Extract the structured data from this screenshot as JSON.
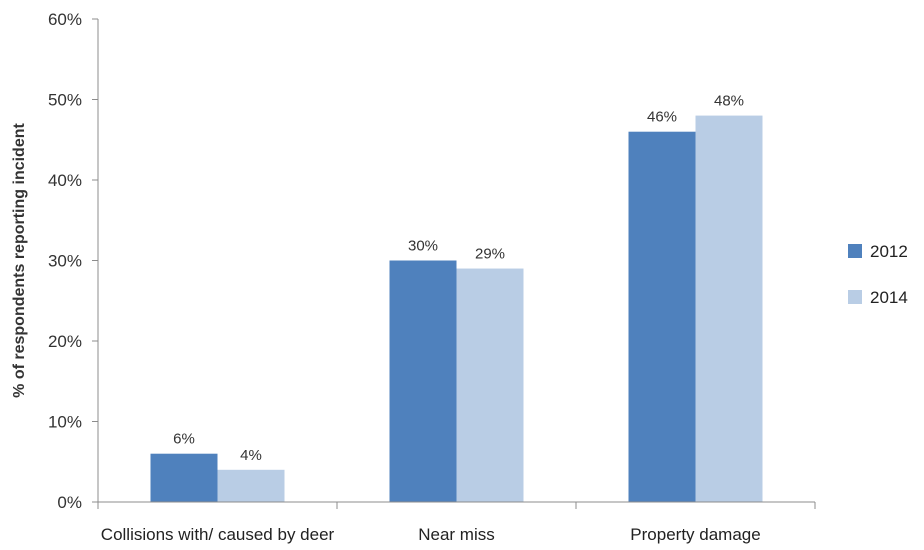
{
  "chart_data": {
    "type": "bar",
    "title": "",
    "xlabel": "",
    "ylabel": "% of respondents reporting incident",
    "ylim": [
      0,
      60
    ],
    "yticks": [
      0,
      10,
      20,
      30,
      40,
      50,
      60
    ],
    "ytick_suffix": "%",
    "grid": false,
    "legend_position": "right",
    "categories": [
      "Collisions with/ caused by deer",
      "Near miss",
      "Property damage"
    ],
    "series": [
      {
        "name": "2012",
        "color": "#4f81bd",
        "values": [
          6,
          30,
          46
        ],
        "labels": [
          "6%",
          "30%",
          "46%"
        ]
      },
      {
        "name": "2014",
        "color": "#b9cde5",
        "values": [
          4,
          29,
          48
        ],
        "labels": [
          "4%",
          "29%",
          "48%"
        ]
      }
    ]
  }
}
